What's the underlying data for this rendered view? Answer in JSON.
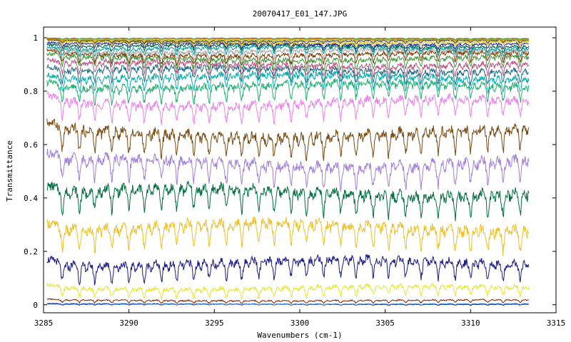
{
  "chart_data": {
    "type": "line",
    "title": "20070417_E01_147.JPG",
    "xlabel": "Wavenumbers (cm-1)",
    "ylabel": "Transmittance",
    "xlim": [
      3285,
      3315
    ],
    "ylim": [
      -0.03,
      1.04
    ],
    "data_x_range": [
      3285.2,
      3313.4
    ],
    "x_ticks": [
      3285,
      3290,
      3295,
      3300,
      3305,
      3310,
      3315
    ],
    "x_tick_labels": [
      "3285",
      "3290",
      "3295",
      "3300",
      "3305",
      "3310",
      "3315"
    ],
    "y_ticks": [
      0,
      0.2,
      0.4,
      0.6,
      0.8,
      1
    ],
    "y_tick_labels": [
      "0",
      "0.2",
      "0.4",
      "0.6",
      "0.8",
      "1"
    ],
    "grid": false,
    "legend": "none",
    "absorption_lines_cm1": [
      3286.1,
      3287.1,
      3288.0,
      3289.0,
      3290.0,
      3290.9,
      3291.9,
      3292.8,
      3293.8,
      3294.7,
      3295.7,
      3296.6,
      3297.6,
      3298.5,
      3299.5,
      3300.4,
      3301.4,
      3302.4,
      3303.3,
      3304.3,
      3305.2,
      3306.2,
      3307.1,
      3308.1,
      3309.1,
      3310.0,
      3311.0,
      3311.9,
      3312.9
    ],
    "series": [
      {
        "baseline": 0.003,
        "depth": 0.004,
        "color": "#1a1a9a"
      },
      {
        "baseline": 0.005,
        "depth": 0.005,
        "color": "#2f7fd0"
      },
      {
        "baseline": 0.02,
        "depth": 0.012,
        "color": "#8b2500"
      },
      {
        "baseline": 0.075,
        "depth": 0.04,
        "color": "#e8e830"
      },
      {
        "baseline": 0.18,
        "depth": 0.08,
        "color": "#1a1a8c"
      },
      {
        "baseline": 0.32,
        "depth": 0.1,
        "color": "#f0c020"
      },
      {
        "baseline": 0.45,
        "depth": 0.1,
        "color": "#007040"
      },
      {
        "baseline": 0.56,
        "depth": 0.1,
        "color": "#a080e0"
      },
      {
        "baseline": 0.67,
        "depth": 0.1,
        "color": "#7a4a10"
      },
      {
        "baseline": 0.78,
        "depth": 0.08,
        "color": "#ee82ee"
      },
      {
        "baseline": 0.84,
        "depth": 0.07,
        "color": "#20b070"
      },
      {
        "baseline": 0.87,
        "depth": 0.06,
        "color": "#00b0b0"
      },
      {
        "baseline": 0.895,
        "depth": 0.055,
        "color": "#1a6a8a"
      },
      {
        "baseline": 0.915,
        "depth": 0.05,
        "color": "#c05080"
      },
      {
        "baseline": 0.935,
        "depth": 0.045,
        "color": "#3a9a3a"
      },
      {
        "baseline": 0.95,
        "depth": 0.04,
        "color": "#7a3a00"
      },
      {
        "baseline": 0.96,
        "depth": 0.035,
        "color": "#a8a8a8"
      },
      {
        "baseline": 0.97,
        "depth": 0.03,
        "color": "#00a0a0"
      },
      {
        "baseline": 0.977,
        "depth": 0.025,
        "color": "#006040"
      },
      {
        "baseline": 0.983,
        "depth": 0.02,
        "color": "#2020a0"
      },
      {
        "baseline": 0.988,
        "depth": 0.016,
        "color": "#e0c000"
      },
      {
        "baseline": 0.992,
        "depth": 0.012,
        "color": "#303030"
      },
      {
        "baseline": 0.995,
        "depth": 0.009,
        "color": "#a0a000"
      },
      {
        "baseline": 0.997,
        "depth": 0.006,
        "color": "#ff8c00"
      },
      {
        "baseline": 0.999,
        "depth": 0.004,
        "color": "#208020"
      }
    ]
  }
}
